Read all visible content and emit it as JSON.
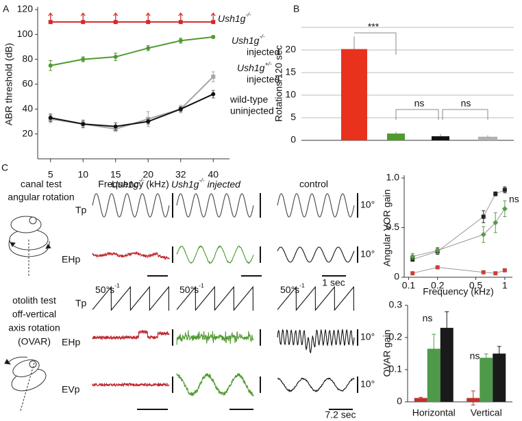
{
  "panel_labels": [
    "A",
    "B",
    "C"
  ],
  "chart_data": [
    {
      "type": "line",
      "ylabel": "ABR threshold (dB)",
      "xlabel": "Frequency (kHz)",
      "categories": [
        "5",
        "10",
        "15",
        "20",
        "32",
        "40"
      ],
      "series": [
        {
          "name": "Ush1g",
          "genotype": "-/-",
          "color": "#d42a2a",
          "marker": "square",
          "arrows": true,
          "values": [
            110,
            110,
            110,
            110,
            110,
            110
          ]
        },
        {
          "name": "Ush1g",
          "genotype": "-/-",
          "condition": "injected",
          "color": "#4e9a2f",
          "marker": "circle",
          "values": [
            75,
            80,
            82,
            89,
            95,
            98
          ],
          "errors": [
            4,
            2,
            3,
            2,
            2,
            1
          ]
        },
        {
          "name": "Ush1g",
          "genotype": "+/-",
          "condition": "injected",
          "color": "#a6a6a6",
          "marker": "square",
          "values": [
            32,
            28,
            24,
            32,
            40,
            66
          ],
          "errors": [
            3,
            2,
            2,
            6,
            3,
            4
          ]
        },
        {
          "name": "wild-type",
          "condition": "uninjected",
          "color": "#111111",
          "marker": "circle",
          "values": [
            33,
            28,
            26,
            30,
            40,
            52
          ],
          "errors": [
            3,
            3,
            3,
            2,
            2,
            3
          ]
        }
      ],
      "ylim": [
        0,
        120
      ],
      "yticks": [
        20,
        40,
        60,
        80,
        100,
        120
      ]
    },
    {
      "type": "bar",
      "ylabel": "Rotations/120 sec",
      "categories": [
        null,
        null,
        null,
        null
      ],
      "values": [
        20.2,
        1.5,
        0.9,
        0.8
      ],
      "errors": [
        2.8,
        0.4,
        0.5,
        0.3
      ],
      "colors": [
        "#e8321e",
        "#4e9a2f",
        "#111111",
        "#b0b0b0"
      ],
      "ylim": [
        0,
        25
      ],
      "yticks": [
        0,
        5,
        10,
        15,
        20
      ],
      "grid": true,
      "annotations": [
        "***",
        "ns",
        "ns"
      ]
    },
    {
      "type": "line",
      "ylabel": "Angular VOR gain",
      "xlabel": "Frequency (kHz)",
      "log_x": true,
      "x": [
        0.11,
        0.2,
        0.6,
        0.8,
        1.0
      ],
      "series": [
        {
          "color": "#222222",
          "marker": "square",
          "values": [
            0.18,
            0.26,
            0.61,
            0.84,
            0.88
          ],
          "errors": [
            0.02,
            0.03,
            0.06,
            0.02,
            0.03
          ]
        },
        {
          "color": "#5a9a4a",
          "marker": "diamond",
          "values": [
            0.21,
            0.27,
            0.43,
            0.55,
            0.69
          ],
          "errors": [
            0.03,
            0.03,
            0.08,
            0.1,
            0.08
          ]
        },
        {
          "color": "#c8403a",
          "marker": "square",
          "values": [
            0.04,
            0.1,
            0.05,
            0.04,
            0.07
          ],
          "errors": [
            0.01,
            0.01,
            0.01,
            0.01,
            0.01
          ]
        }
      ],
      "xlim": [
        0.09,
        1.2
      ],
      "xticks": [
        0.1,
        0.2,
        0.5,
        1
      ],
      "ylim": [
        0,
        1
      ],
      "yticks": [
        0,
        0.5,
        {
          "value": 1,
          "label": "1.0"
        }
      ],
      "annotations": [
        "ns"
      ]
    },
    {
      "type": "bar",
      "ylabel": "OVAR gain",
      "categories": [
        "Horizontal",
        "Vertical"
      ],
      "series": [
        {
          "color": "#c0322b",
          "values": [
            0.012,
            0.012
          ],
          "errors": [
            0.002,
            0.022
          ]
        },
        {
          "color": "#4e9a4a",
          "values": [
            0.165,
            0.137
          ],
          "errors": [
            0.045,
            0.012
          ]
        },
        {
          "color": "#1a1a1a",
          "values": [
            0.23,
            0.15
          ],
          "errors": [
            0.05,
            0.022
          ]
        }
      ],
      "ylim": [
        0,
        0.3
      ],
      "yticks": [
        0,
        0.1,
        0.2,
        0.3
      ],
      "annotations": [
        "ns",
        "ns"
      ]
    }
  ],
  "panel_c": {
    "columns": [
      {
        "name": "Ush1g",
        "genotype": "-/-"
      },
      {
        "name": "Ush1g",
        "genotype": "-/-",
        "condition": "injected"
      },
      {
        "name": "control"
      }
    ],
    "canal_test": [
      "canal test",
      "angular rotation"
    ],
    "otolith_test": [
      "otolith test",
      "off-vertical",
      "axis rotation",
      "(OVAR)"
    ],
    "rows": [
      "Tp",
      "EHp",
      "Tp",
      "EHp",
      "EVp"
    ],
    "scale": "10°",
    "velocity": "50°s",
    "velocity_exp": "-1",
    "time_1": "1 sec",
    "time_2": "7.2 sec"
  }
}
